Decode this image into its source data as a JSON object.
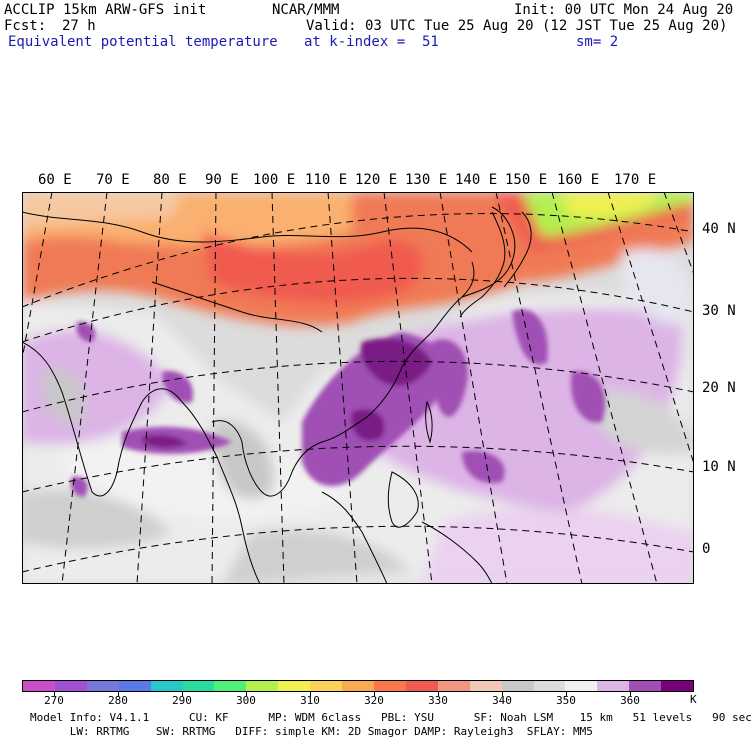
{
  "header": {
    "model": "ACCLIP 15km ARW-GFS init",
    "org": "NCAR/MMM",
    "init": "Init: 00 UTC Mon 24 Aug 20",
    "fcst_label": "Fcst:",
    "fcst_value": "27 h",
    "valid": "Valid: 03 UTC Tue 25 Aug 20 (12 JST Tue 25 Aug 20)",
    "field": "Equivalent potential temperature",
    "level": "at k-index =  51",
    "smoothing": "sm= 2"
  },
  "map": {
    "lon_labels": [
      "60 E",
      "70 E",
      "80 E",
      "90 E",
      "100 E",
      "110 E",
      "120 E",
      "130 E",
      "140 E",
      "150 E",
      "160 E",
      "170 E"
    ],
    "lat_labels": [
      "40 N",
      "30 N",
      "20 N",
      "10 N",
      "0"
    ]
  },
  "colorbar": {
    "colors": [
      "#c84ec8",
      "#a050d2",
      "#7878dc",
      "#5a78e6",
      "#28c8c8",
      "#28dca0",
      "#50f078",
      "#b4f050",
      "#f0f050",
      "#fad25a",
      "#faaa50",
      "#fa784b",
      "#f05a50",
      "#f09682",
      "#f0c8b4",
      "#c8c8c8",
      "#dcdcdc",
      "#f0f0f0",
      "#dcb4e6",
      "#a050b4",
      "#780078"
    ],
    "tick_labels": [
      "270",
      "280",
      "290",
      "300",
      "310",
      "320",
      "330",
      "340",
      "350",
      "360"
    ],
    "unit": "K"
  },
  "model_info": {
    "line1": "Model Info: V4.1.1      CU: KF      MP: WDM 6class   PBL: YSU      SF: Noah LSM    15 km   51 levels   90 sec",
    "line2": "      LW: RRTMG    SW: RRTMG   DIFF: simple KM: 2D Smagor DAMP: Rayleigh3  SFLAY: MM5"
  }
}
